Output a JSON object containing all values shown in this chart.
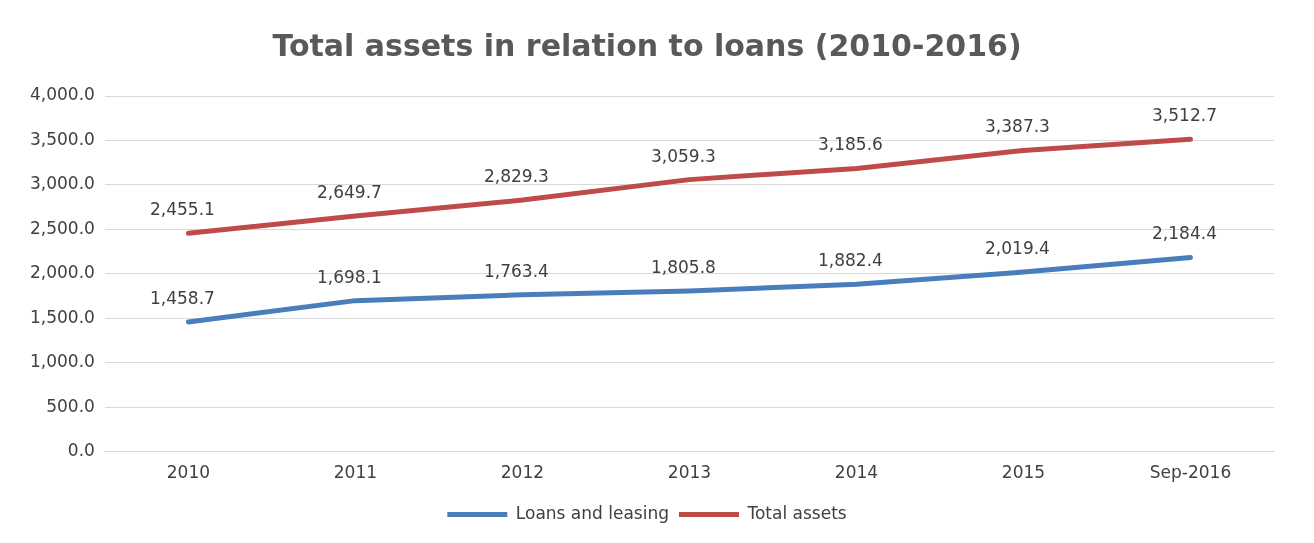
{
  "chart_data": {
    "type": "line",
    "title": "Total assets in relation to loans (2010-2016)",
    "categories": [
      "2010",
      "2011",
      "2012",
      "2013",
      "2014",
      "2015",
      "Sep-2016"
    ],
    "series": [
      {
        "name": "Loans and leasing",
        "color": "#4a7ebb",
        "values": [
          1458.7,
          1698.1,
          1763.4,
          1805.8,
          1882.4,
          2019.4,
          2184.4
        ],
        "value_labels": [
          "1,458.7",
          "1,698.1",
          "1,763.4",
          "1,805.8",
          "1,882.4",
          "2,019.4",
          "2,184.4"
        ]
      },
      {
        "name": "Total assets",
        "color": "#be4b48",
        "values": [
          2455.1,
          2649.7,
          2829.3,
          3059.3,
          3185.6,
          3387.3,
          3512.7
        ],
        "value_labels": [
          "2,455.1",
          "2,649.7",
          "2,829.3",
          "3,059.3",
          "3,185.6",
          "3,387.3",
          "3,512.7"
        ]
      }
    ],
    "ylim": [
      0,
      4000
    ],
    "yticks": [
      {
        "value": 0,
        "label": "0.0"
      },
      {
        "value": 500,
        "label": "500.0"
      },
      {
        "value": 1000,
        "label": "1,000.0"
      },
      {
        "value": 1500,
        "label": "1,500.0"
      },
      {
        "value": 2000,
        "label": "2,000.0"
      },
      {
        "value": 2500,
        "label": "2,500.0"
      },
      {
        "value": 3000,
        "label": "3,000.0"
      },
      {
        "value": 3500,
        "label": "3,500.0"
      },
      {
        "value": 4000,
        "label": "4,000.0"
      }
    ],
    "grid": "y",
    "legend": "bottom",
    "marker": "none",
    "line_style": "solid"
  }
}
